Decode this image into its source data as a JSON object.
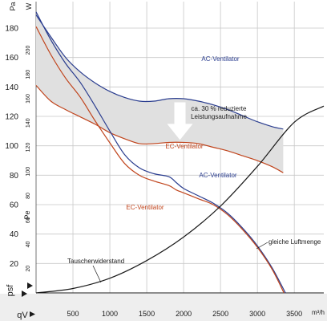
{
  "chart_data": {
    "type": "line",
    "x_unit_label": "m³/h",
    "x_axis_label": "qV",
    "y_left_unit": "Pa",
    "y_left_label": "psf",
    "y_right_unit": "W",
    "y_right_label": "Pe",
    "x_ticks": [
      "500",
      "1000",
      "1500",
      "2000",
      "2500",
      "3000",
      "3500"
    ],
    "xlim": [
      0,
      3900
    ],
    "pressure_ticks": [
      "20",
      "40",
      "60",
      "80",
      "100",
      "120",
      "140",
      "160",
      "180"
    ],
    "pressure_ylim": [
      0,
      198
    ],
    "power_ticks": [
      "20",
      "40",
      "60",
      "80",
      "100",
      "120",
      "140",
      "160",
      "180",
      "200"
    ],
    "power_ylim": [
      0,
      240
    ],
    "grid": true,
    "colors": {
      "ac": "#2a3d8f",
      "ec": "#c0441c",
      "black": "#1a1a1a",
      "grid": "#c8c8c8",
      "shade": "#e0e0e0",
      "panel": "#eeeeee",
      "arrow": "#ffffff"
    },
    "series": [
      {
        "name": "AC-Ventilator",
        "kind": "power",
        "color": "#2a3d8f",
        "points": [
          [
            0,
            229
          ],
          [
            200,
            211
          ],
          [
            400,
            194
          ],
          [
            600,
            182
          ],
          [
            800,
            173
          ],
          [
            1000,
            166
          ],
          [
            1200,
            161
          ],
          [
            1400,
            158
          ],
          [
            1600,
            158
          ],
          [
            1800,
            160
          ],
          [
            2000,
            160
          ],
          [
            2200,
            158
          ],
          [
            2400,
            155
          ],
          [
            2600,
            151
          ],
          [
            2800,
            146
          ],
          [
            3000,
            141
          ],
          [
            3200,
            137
          ],
          [
            3350,
            135
          ]
        ]
      },
      {
        "name": "EC-Ventilator",
        "kind": "power",
        "color": "#c0441c",
        "points": [
          [
            0,
            171
          ],
          [
            200,
            158
          ],
          [
            400,
            151
          ],
          [
            600,
            145
          ],
          [
            800,
            139
          ],
          [
            1000,
            132
          ],
          [
            1200,
            127
          ],
          [
            1400,
            123
          ],
          [
            1600,
            123
          ],
          [
            1800,
            124
          ],
          [
            2000,
            124
          ],
          [
            2200,
            123
          ],
          [
            2400,
            120
          ],
          [
            2600,
            117
          ],
          [
            2800,
            113
          ],
          [
            3000,
            109
          ],
          [
            3200,
            104
          ],
          [
            3350,
            99
          ]
        ]
      },
      {
        "name": "AC-Ventilator",
        "kind": "pressure",
        "color": "#2a3d8f",
        "points": [
          [
            0,
            191
          ],
          [
            200,
            172
          ],
          [
            400,
            156
          ],
          [
            600,
            143
          ],
          [
            800,
            127
          ],
          [
            1000,
            110
          ],
          [
            1200,
            94
          ],
          [
            1400,
            85
          ],
          [
            1600,
            81
          ],
          [
            1800,
            79
          ],
          [
            1900,
            75
          ],
          [
            2000,
            71
          ],
          [
            2200,
            66
          ],
          [
            2400,
            61
          ],
          [
            2600,
            54
          ],
          [
            2800,
            44
          ],
          [
            3000,
            32
          ],
          [
            3200,
            17
          ],
          [
            3380,
            0
          ]
        ]
      },
      {
        "name": "EC-Ventilator",
        "kind": "pressure",
        "color": "#c0441c",
        "points": [
          [
            0,
            181
          ],
          [
            200,
            162
          ],
          [
            400,
            146
          ],
          [
            600,
            133
          ],
          [
            800,
            117
          ],
          [
            1000,
            102
          ],
          [
            1200,
            88
          ],
          [
            1400,
            80
          ],
          [
            1600,
            76
          ],
          [
            1800,
            73
          ],
          [
            1900,
            70
          ],
          [
            2000,
            68
          ],
          [
            2200,
            64
          ],
          [
            2400,
            60
          ],
          [
            2600,
            53
          ],
          [
            2800,
            43
          ],
          [
            3000,
            31
          ],
          [
            3200,
            16
          ],
          [
            3360,
            0
          ]
        ]
      },
      {
        "name": "Tauscherwiderstand",
        "kind": "pressure",
        "color": "#1a1a1a",
        "points": [
          [
            0,
            0
          ],
          [
            500,
            3
          ],
          [
            1000,
            10
          ],
          [
            1500,
            22
          ],
          [
            2000,
            38
          ],
          [
            2500,
            59
          ],
          [
            3000,
            86
          ],
          [
            3500,
            116
          ],
          [
            3900,
            127
          ]
        ]
      }
    ],
    "annotations": {
      "ac_power_label": "AC-Ventilator",
      "ec_power_label": "EC-Ventilator",
      "ac_pressure_label": "AC-Ventilator",
      "ec_pressure_label": "EC-Ventilator",
      "reduction_line1": "ca. 30 % reduzierte",
      "reduction_line2": "Leistungsaufnahme",
      "same_airflow": "gleiche Luftmenge",
      "exchanger": "Tauscherwiderstand"
    }
  }
}
